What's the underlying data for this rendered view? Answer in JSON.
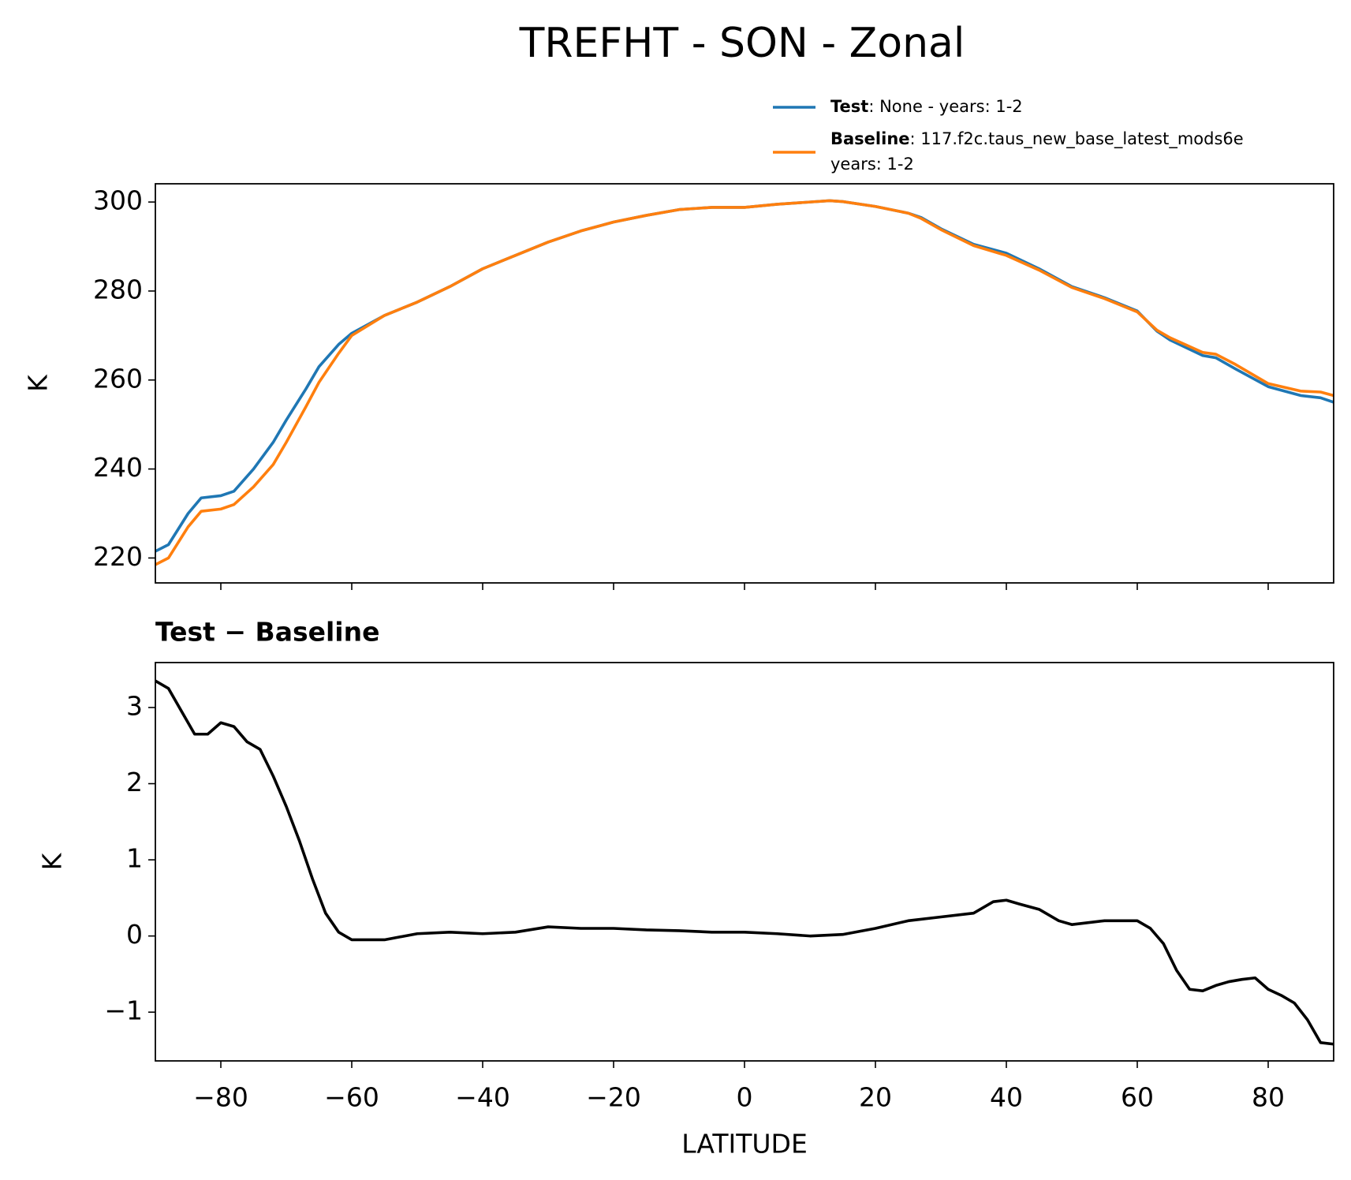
{
  "title": "TREFHT - SON - Zonal",
  "chart_data": [
    {
      "type": "line",
      "ylabel": "K",
      "x": [
        -90,
        -88,
        -85,
        -83,
        -80,
        -78,
        -75,
        -72,
        -70,
        -67,
        -65,
        -62,
        -60,
        -55,
        -50,
        -45,
        -40,
        -35,
        -30,
        -25,
        -20,
        -15,
        -10,
        -5,
        0,
        5,
        10,
        13,
        15,
        20,
        25,
        27,
        30,
        35,
        40,
        45,
        50,
        55,
        60,
        63,
        65,
        70,
        72,
        75,
        80,
        85,
        88,
        90
      ],
      "series": [
        {
          "name": "Test",
          "desc": ": None - years: 1-2",
          "color": "#1f77b4",
          "values": [
            221.5,
            223,
            230,
            233.5,
            234,
            235,
            240,
            246,
            251,
            258,
            263,
            268,
            270.5,
            274.5,
            277.5,
            281,
            285,
            288,
            291,
            293.5,
            295.5,
            297,
            298.3,
            298.8,
            298.8,
            299.5,
            300,
            300.3,
            300.1,
            299,
            297.5,
            296.5,
            294,
            290.5,
            288.5,
            285,
            281,
            278.5,
            275.5,
            271,
            269,
            265.5,
            265,
            262.5,
            258.5,
            256.5,
            256,
            255
          ]
        },
        {
          "name": "Baseline",
          "desc": ": 117.f2c.taus_new_base_latest_mods6e",
          "desc2": "years: 1-2",
          "color": "#ff7f0e",
          "values": [
            218.5,
            220,
            227,
            230.5,
            231,
            232,
            236,
            241,
            246,
            254,
            259.5,
            266,
            270,
            274.5,
            277.5,
            281,
            285,
            288,
            291,
            293.5,
            295.5,
            297,
            298.3,
            298.8,
            298.8,
            299.5,
            300,
            300.3,
            300.1,
            299,
            297.5,
            296.3,
            293.8,
            290.2,
            288,
            284.7,
            280.8,
            278.3,
            275.3,
            271.2,
            269.5,
            266.2,
            265.8,
            263.5,
            259.2,
            257.5,
            257.3,
            256.5
          ]
        }
      ],
      "xlim": [
        -90,
        90
      ],
      "xticks": [
        -80,
        -60,
        -40,
        -20,
        0,
        20,
        40,
        60,
        80
      ],
      "ylim": [
        214.4,
        304.1
      ],
      "yticks": [
        220,
        240,
        260,
        280,
        300
      ]
    },
    {
      "type": "line",
      "title": "Test − Baseline",
      "xlabel": "LATITUDE",
      "ylabel": "K",
      "x": [
        -90,
        -88,
        -86,
        -84,
        -82,
        -80,
        -78,
        -76,
        -74,
        -72,
        -70,
        -68,
        -66,
        -64,
        -62,
        -60,
        -55,
        -50,
        -45,
        -40,
        -35,
        -30,
        -25,
        -20,
        -15,
        -10,
        -5,
        0,
        5,
        10,
        15,
        20,
        25,
        30,
        35,
        38,
        40,
        42,
        45,
        48,
        50,
        55,
        60,
        62,
        64,
        66,
        68,
        70,
        72,
        74,
        76,
        78,
        80,
        82,
        84,
        86,
        88,
        90
      ],
      "series": [
        {
          "color": "#000000",
          "values": [
            3.35,
            3.25,
            2.95,
            2.65,
            2.65,
            2.8,
            2.75,
            2.55,
            2.45,
            2.1,
            1.7,
            1.25,
            0.75,
            0.3,
            0.05,
            -0.05,
            -0.05,
            0.03,
            0.05,
            0.03,
            0.05,
            0.12,
            0.1,
            0.1,
            0.08,
            0.07,
            0.05,
            0.05,
            0.03,
            0,
            0.02,
            0.1,
            0.2,
            0.25,
            0.3,
            0.45,
            0.47,
            0.42,
            0.35,
            0.2,
            0.15,
            0.2,
            0.2,
            0.1,
            -0.1,
            -0.45,
            -0.7,
            -0.72,
            -0.65,
            -0.6,
            -0.57,
            -0.55,
            -0.7,
            -0.78,
            -0.88,
            -1.1,
            -1.4,
            -1.42
          ]
        }
      ],
      "xlim": [
        -90,
        90
      ],
      "xticks": [
        {
          "value": -80,
          "label": "−80"
        },
        {
          "value": -60,
          "label": "−60"
        },
        {
          "value": -40,
          "label": "−40"
        },
        {
          "value": -20,
          "label": "−20"
        },
        0,
        20,
        40,
        60,
        80
      ],
      "ylim": [
        -1.64,
        3.59
      ],
      "yticks": [
        {
          "value": -1,
          "label": "−1"
        },
        0,
        1,
        2,
        3
      ]
    }
  ]
}
